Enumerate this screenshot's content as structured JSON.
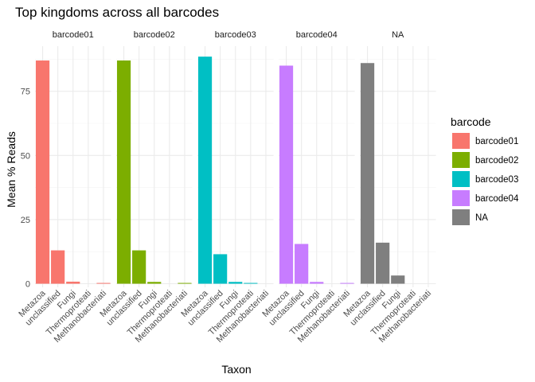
{
  "chart_data": {
    "type": "bar",
    "title": "Top kingdoms across all barcodes",
    "xlabel": "Taxon",
    "ylabel": "Mean % Reads",
    "ylim": [
      0,
      93
    ],
    "yticks": [
      0,
      25,
      50,
      75
    ],
    "grid": true,
    "legend": {
      "title": "barcode",
      "position": "right",
      "entries": [
        "barcode01",
        "barcode02",
        "barcode03",
        "barcode04",
        "NA"
      ]
    },
    "categories": [
      "Metazoa",
      "unclassified",
      "Fungi",
      "Thermoproteati",
      "Methanobacteriati"
    ],
    "panels": [
      {
        "name": "barcode01",
        "color": "#F8766D",
        "values": [
          87,
          13,
          0.8,
          0,
          0.3
        ]
      },
      {
        "name": "barcode02",
        "color": "#7CAE00",
        "values": [
          87,
          13,
          0.7,
          0,
          0.3
        ]
      },
      {
        "name": "barcode03",
        "color": "#00BFC4",
        "values": [
          88.5,
          11.5,
          0.7,
          0.3,
          0
        ]
      },
      {
        "name": "barcode04",
        "color": "#C77CFF",
        "values": [
          85,
          15.5,
          0.7,
          0,
          0.3
        ]
      },
      {
        "name": "NA",
        "color": "#7F7F7F",
        "values": [
          86,
          16,
          3.2,
          0,
          0
        ]
      }
    ]
  }
}
